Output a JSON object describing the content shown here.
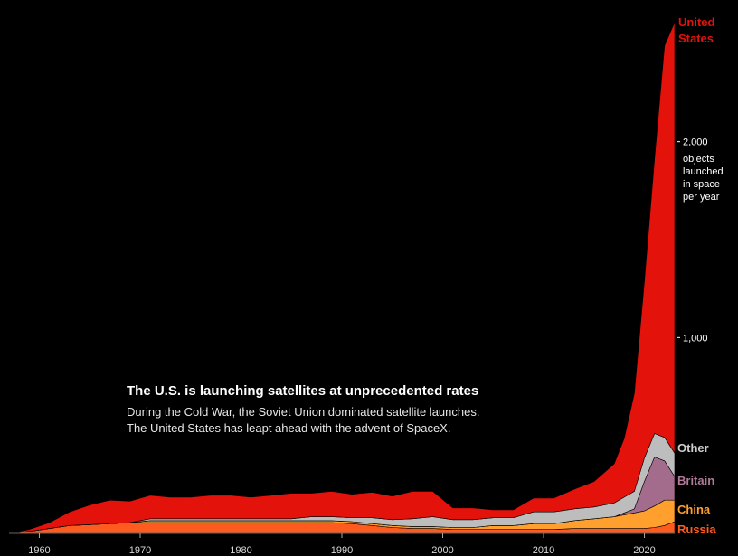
{
  "annotation": {
    "title": "The U.S. is launching satellites at unprecedented rates",
    "body_line1": "During the Cold War, the Soviet Union dominated satellite launches.",
    "body_line2": "The United States has leapt ahead with the advent of SpaceX."
  },
  "chart_data": {
    "type": "area",
    "stacked": true,
    "x_unit": "year",
    "x": [
      1957,
      1959,
      1961,
      1963,
      1965,
      1967,
      1969,
      1971,
      1973,
      1975,
      1977,
      1979,
      1981,
      1983,
      1985,
      1987,
      1989,
      1991,
      1993,
      1995,
      1997,
      1999,
      2001,
      2003,
      2005,
      2007,
      2009,
      2011,
      2013,
      2015,
      2017,
      2018,
      2019,
      2020,
      2021,
      2022,
      2023
    ],
    "series": [
      {
        "name": "Russia",
        "color": "#ff5a1f",
        "values": [
          0,
          10,
          25,
          40,
          45,
          50,
          55,
          55,
          55,
          55,
          55,
          55,
          55,
          55,
          55,
          55,
          55,
          50,
          40,
          30,
          25,
          25,
          20,
          20,
          20,
          20,
          20,
          20,
          25,
          25,
          25,
          25,
          25,
          25,
          30,
          40,
          60
        ]
      },
      {
        "name": "China",
        "color": "#ff9f2e",
        "values": [
          0,
          0,
          0,
          0,
          0,
          0,
          0,
          10,
          10,
          10,
          10,
          10,
          10,
          10,
          10,
          10,
          10,
          10,
          10,
          10,
          10,
          10,
          10,
          10,
          20,
          20,
          30,
          30,
          40,
          50,
          60,
          70,
          80,
          90,
          110,
          130,
          110
        ]
      },
      {
        "name": "Britain",
        "color": "#a36b8c",
        "values": [
          0,
          0,
          0,
          0,
          0,
          0,
          0,
          0,
          0,
          0,
          0,
          0,
          0,
          0,
          0,
          0,
          0,
          0,
          0,
          0,
          0,
          0,
          0,
          0,
          0,
          0,
          0,
          0,
          0,
          0,
          0,
          10,
          20,
          150,
          250,
          200,
          120
        ]
      },
      {
        "name": "Other",
        "color": "#bdbdbd",
        "values": [
          0,
          0,
          0,
          0,
          0,
          0,
          0,
          10,
          10,
          10,
          10,
          10,
          10,
          10,
          10,
          20,
          20,
          20,
          30,
          30,
          40,
          50,
          40,
          40,
          40,
          40,
          60,
          60,
          60,
          60,
          70,
          80,
          90,
          120,
          120,
          120,
          120
        ]
      },
      {
        "name": "United States",
        "color": "#e3120b",
        "values": [
          0,
          10,
          30,
          70,
          100,
          120,
          110,
          120,
          110,
          110,
          120,
          120,
          110,
          120,
          130,
          120,
          130,
          120,
          130,
          120,
          140,
          130,
          60,
          60,
          40,
          40,
          70,
          70,
          100,
          130,
          200,
          300,
          500,
          900,
          1400,
          2000,
          2200
        ]
      }
    ],
    "series_labels": [
      {
        "key": "united_states",
        "lines": [
          "United",
          "States"
        ]
      },
      {
        "key": "other",
        "lines": [
          "Other"
        ]
      },
      {
        "key": "britain",
        "lines": [
          "Britain"
        ]
      },
      {
        "key": "china",
        "lines": [
          "China"
        ]
      },
      {
        "key": "russia",
        "lines": [
          "Russia"
        ]
      }
    ],
    "x_ticks": [
      "1960",
      "1970",
      "1980",
      "1990",
      "2000",
      "2010",
      "2020"
    ],
    "x_tick_values": [
      1960,
      1970,
      1980,
      1990,
      2000,
      2010,
      2020
    ],
    "y_ticks": [
      {
        "value": 1000,
        "label": "1,000"
      },
      {
        "value": 2000,
        "label": "2,000"
      }
    ],
    "y_unit_lines": [
      "objects",
      "launched",
      "in space",
      "per year"
    ],
    "xlim": [
      1957,
      2023
    ],
    "ylim": [
      0,
      2700
    ],
    "grid": false
  }
}
